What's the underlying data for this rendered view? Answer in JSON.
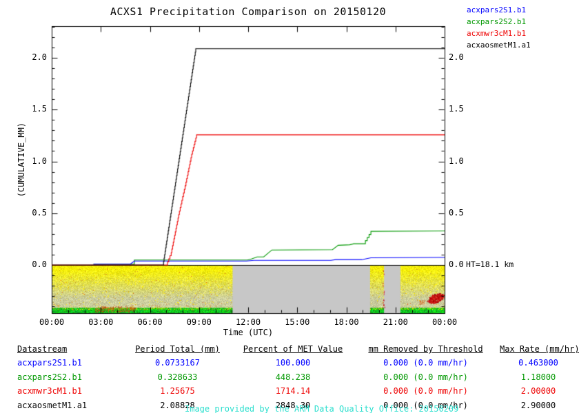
{
  "title": "ACXS1 Precipitation Comparison on 20150120",
  "ht_label": "HT=18.1 km",
  "legend": {
    "position": "top-right-outside",
    "items": [
      {
        "label": "acxpars2S1.b1",
        "color": "#0000FF"
      },
      {
        "label": "acxpars2S2.b1",
        "color": "#009800"
      },
      {
        "label": "acxmwr3cM1.b1",
        "color": "#EE0000"
      },
      {
        "label": "acxaosmetM1.a1",
        "color": "#000000"
      }
    ]
  },
  "chart_data": {
    "type": "line",
    "title": "ACXS1 Precipitation Comparison on 20150120",
    "xlabel": "Time (UTC)",
    "ylabel": "(CUMULATIVE_MM)",
    "xlim_hours": [
      0,
      24
    ],
    "ylim": [
      -0.465,
      2.306
    ],
    "grid": false,
    "x_ticks": {
      "major_step_hours": 3,
      "minor_step_hours": 1,
      "labels": [
        "00:00",
        "03:00",
        "06:00",
        "09:00",
        "12:00",
        "15:00",
        "18:00",
        "21:00",
        "00:00"
      ]
    },
    "y_ticks": {
      "major_values": [
        0,
        0.5,
        1.0,
        1.5,
        2.0
      ],
      "labels": [
        "0.0",
        "0.5",
        "1.0",
        "1.5",
        "2.0"
      ],
      "minor_step": 0.1,
      "mirrored_right": true
    },
    "series": [
      {
        "name": "acxpars2S2.b1",
        "color": "#009800",
        "steps": true,
        "points": [
          [
            2.55,
            0.008
          ],
          [
            4.8,
            0.008
          ],
          [
            5.05,
            0.048
          ],
          [
            11.95,
            0.048
          ],
          [
            12.2,
            0.058
          ],
          [
            12.55,
            0.078
          ],
          [
            12.95,
            0.078
          ],
          [
            13.45,
            0.145
          ],
          [
            17.15,
            0.148
          ],
          [
            17.5,
            0.19
          ],
          [
            18.2,
            0.195
          ],
          [
            18.45,
            0.205
          ],
          [
            19.05,
            0.205
          ],
          [
            19.5,
            0.325
          ],
          [
            24,
            0.3286
          ]
        ]
      },
      {
        "name": "acxpars2S1.b1",
        "color": "#0000FF",
        "steps": true,
        "points": [
          [
            2.55,
            0.008
          ],
          [
            4.8,
            0.008
          ],
          [
            5.05,
            0.038
          ],
          [
            11.9,
            0.038
          ],
          [
            12.35,
            0.045
          ],
          [
            17.05,
            0.045
          ],
          [
            17.35,
            0.052
          ],
          [
            18.95,
            0.052
          ],
          [
            19.5,
            0.07
          ],
          [
            24,
            0.0733
          ]
        ]
      },
      {
        "name": "acxmwr3cM1.b1",
        "color": "#EE0000",
        "steps": true,
        "points": [
          [
            0,
            0
          ],
          [
            7.0,
            0
          ],
          [
            7.3,
            0.12
          ],
          [
            7.8,
            0.52
          ],
          [
            8.2,
            0.8
          ],
          [
            8.55,
            1.07
          ],
          [
            8.85,
            1.2568
          ],
          [
            24,
            1.2568
          ]
        ]
      },
      {
        "name": "acxaosmetM1.a1",
        "color": "#000000",
        "steps": true,
        "points": [
          [
            0,
            0
          ],
          [
            6.8,
            0
          ],
          [
            8.8,
            2.0883
          ],
          [
            24,
            2.0883
          ]
        ]
      }
    ],
    "annotations": [
      {
        "text": "HT=18.1 km",
        "at_value": 0.0,
        "side": "right"
      }
    ],
    "spectrogram": {
      "description": "noisy reflectivity strip below the zero line",
      "hours_range": [
        0,
        24
      ],
      "value_range": [
        -0.465,
        0
      ],
      "gray_gap_hours": [
        [
          11.05,
          19.45
        ],
        [
          20.3,
          21.3
        ]
      ],
      "colors": {
        "top_yellow": "#F5EE08",
        "mid_pale": "#CCCC9A",
        "bottom_green": "#00C832",
        "gap_gray": "#C7C7C7",
        "blob_red": "#CC1111",
        "speckle_orange": "#E07820"
      }
    }
  },
  "table": {
    "headers": [
      "Datastream",
      "Period Total (mm)",
      "Percent of MET Value",
      "mm Removed by Threshold",
      "Max Rate (mm/hr)"
    ],
    "rows": [
      {
        "color": "#0000FF",
        "cells": [
          "acxpars2S1.b1",
          "0.0733167",
          "100.000",
          "0.000 (0.0 mm/hr)",
          "0.463000"
        ]
      },
      {
        "color": "#009800",
        "cells": [
          "acxpars2S2.b1",
          "0.328633",
          "448.238",
          "0.000 (0.0 mm/hr)",
          "1.18000"
        ]
      },
      {
        "color": "#EE0000",
        "cells": [
          "acxmwr3cM1.b1",
          "1.25675",
          "1714.14",
          "0.000 (0.0 mm/hr)",
          "2.00000"
        ]
      },
      {
        "color": "#000000",
        "cells": [
          "acxaosmetM1.a1",
          "2.08828",
          "2848.30",
          "0.000 (0.0 mm/hr)",
          "2.90000"
        ]
      }
    ]
  },
  "footer": {
    "text": "Image provided by the ARM Data Quality Office: 20150209",
    "color": "#2BDFCE"
  }
}
